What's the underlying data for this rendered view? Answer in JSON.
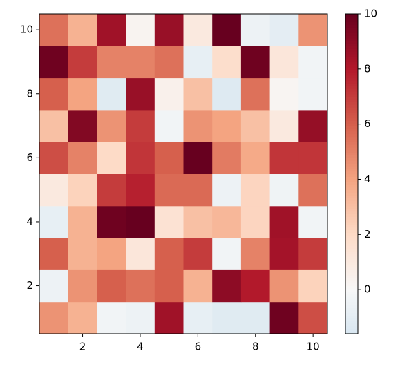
{
  "chart_data": {
    "type": "heatmap",
    "x": [
      1,
      2,
      3,
      4,
      5,
      6,
      7,
      8,
      9,
      10
    ],
    "y": [
      1,
      2,
      3,
      4,
      5,
      6,
      7,
      8,
      9,
      10
    ],
    "z": [
      [
        4.5,
        3.5,
        -0.3,
        -0.5,
        8.5,
        -0.8,
        -1.2,
        -1.2,
        9.8,
        6.5
      ],
      [
        -0.5,
        4.5,
        6,
        5.5,
        6,
        3.5,
        9,
        8,
        4.5,
        2.3
      ],
      [
        6,
        3.5,
        4,
        1.2,
        6,
        7,
        -0.3,
        5,
        8.4,
        7
      ],
      [
        -0.8,
        3.5,
        9.8,
        10,
        1.5,
        3,
        3.3,
        2.2,
        8.5,
        -0.3
      ],
      [
        1,
        2.3,
        7,
        7.8,
        5.7,
        5.7,
        -0.5,
        2.2,
        -0.4,
        5.5
      ],
      [
        6.5,
        5,
        2,
        7.2,
        6,
        10,
        5.2,
        3.8,
        7.2,
        7.2
      ],
      [
        3,
        9.3,
        4.5,
        7,
        -0.3,
        4.5,
        4,
        3,
        1,
        8.8
      ],
      [
        6,
        4,
        -1.2,
        8.7,
        0.5,
        3,
        -1.3,
        5.5,
        0.2,
        -0.3
      ],
      [
        9.8,
        7,
        5,
        5,
        5.5,
        -0.8,
        1.8,
        9.8,
        1.2,
        -0.3
      ],
      [
        5.5,
        3.5,
        8.5,
        0.3,
        8.7,
        1,
        10,
        -0.5,
        -1,
        4.5
      ]
    ],
    "xlim": [
      0.5,
      10.5
    ],
    "xticks": [
      2,
      4,
      6,
      8,
      10
    ],
    "ylim": [
      0.5,
      10.5
    ],
    "yticks": [
      2,
      4,
      6,
      8,
      10
    ],
    "zlim": [
      -1.6,
      10
    ],
    "zticks": [
      0,
      2,
      4,
      6,
      8,
      10
    ],
    "colormap": [
      "#d8e7f1",
      "#f7f7f7",
      "#fddbc7",
      "#f4a582",
      "#d6604d",
      "#b2182b",
      "#67001f"
    ]
  }
}
